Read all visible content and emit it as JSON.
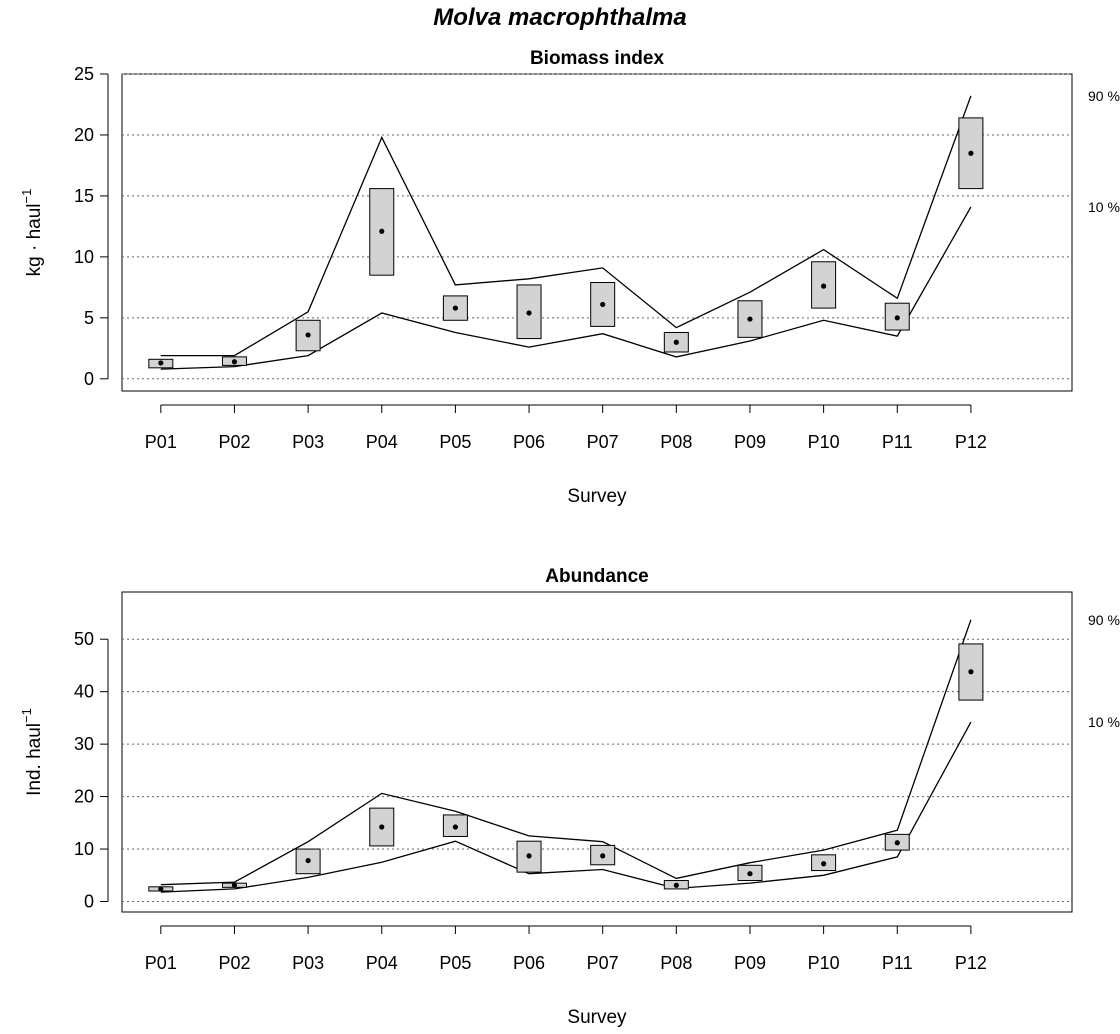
{
  "title": "Molva macrophthalma",
  "chart_data": [
    {
      "type": "box-range",
      "title": "Biomass index",
      "xlabel": "Survey",
      "ylabel_main": "kg · haul",
      "ylabel_sup": "−1",
      "categories": [
        "P01",
        "P02",
        "P03",
        "P04",
        "P05",
        "P06",
        "P07",
        "P08",
        "P09",
        "P10",
        "P11",
        "P12"
      ],
      "ylim": [
        -1,
        25
      ],
      "yticks": [
        0,
        5,
        10,
        15,
        20,
        25
      ],
      "gridlines": [
        0,
        5,
        10,
        15,
        20,
        25
      ],
      "mean": [
        1.3,
        1.4,
        3.6,
        12.1,
        5.8,
        5.4,
        6.1,
        3.0,
        4.9,
        7.6,
        5.0,
        18.5
      ],
      "box_low": [
        0.9,
        1.1,
        2.3,
        8.5,
        4.8,
        3.3,
        4.3,
        2.2,
        3.4,
        5.8,
        4.0,
        15.6
      ],
      "box_high": [
        1.6,
        1.8,
        4.8,
        15.6,
        6.8,
        7.7,
        7.9,
        3.8,
        6.4,
        9.6,
        6.2,
        21.4
      ],
      "line_90": [
        1.9,
        1.9,
        5.5,
        19.8,
        7.7,
        8.2,
        9.1,
        4.2,
        7.1,
        10.6,
        6.6,
        23.2
      ],
      "line_10": [
        0.8,
        1.0,
        1.9,
        5.4,
        3.8,
        2.6,
        3.7,
        1.8,
        3.1,
        4.8,
        3.5,
        14.1
      ],
      "label_90": "90 %",
      "label_10": "10 %"
    },
    {
      "type": "box-range",
      "title": "Abundance",
      "xlabel": "Survey",
      "ylabel_main": "Ind. haul",
      "ylabel_sup": "−1",
      "categories": [
        "P01",
        "P02",
        "P03",
        "P04",
        "P05",
        "P06",
        "P07",
        "P08",
        "P09",
        "P10",
        "P11",
        "P12"
      ],
      "ylim": [
        -2,
        59
      ],
      "yticks": [
        0,
        10,
        20,
        30,
        40,
        50
      ],
      "gridlines": [
        0,
        10,
        20,
        30,
        40,
        50
      ],
      "mean": [
        2.4,
        3.1,
        7.8,
        14.2,
        14.2,
        8.7,
        8.7,
        3.1,
        5.3,
        7.2,
        11.2,
        43.8
      ],
      "box_low": [
        2.0,
        2.7,
        5.3,
        10.6,
        12.4,
        5.6,
        7.0,
        2.4,
        4.0,
        5.9,
        9.8,
        38.4
      ],
      "box_high": [
        2.8,
        3.5,
        10.0,
        17.8,
        16.5,
        11.5,
        10.7,
        4.0,
        6.9,
        8.9,
        12.8,
        49.1
      ],
      "line_90": [
        3.2,
        3.7,
        11.4,
        20.6,
        17.2,
        12.5,
        11.4,
        4.4,
        7.4,
        9.8,
        13.6,
        53.7
      ],
      "line_10": [
        1.8,
        2.4,
        4.6,
        7.5,
        11.5,
        5.3,
        6.1,
        2.5,
        3.5,
        5.0,
        8.5,
        34.2
      ],
      "label_90": "90 %",
      "label_10": "10 %"
    }
  ]
}
